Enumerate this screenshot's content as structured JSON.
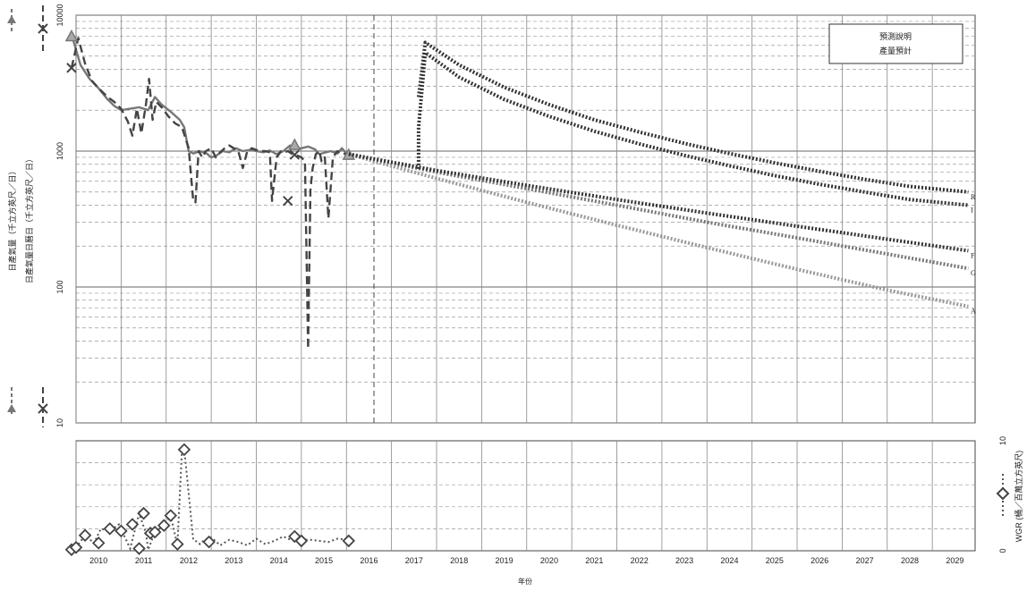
{
  "chart_data": [
    {
      "type": "line",
      "title": "",
      "yscale": "log",
      "ylim": [
        10,
        10000
      ],
      "xlim": [
        2010,
        2029.95
      ],
      "y_tick_values": [
        10,
        100,
        1000,
        10000
      ],
      "y_tick_labels": [
        "10",
        "100",
        "1000",
        "10000"
      ],
      "ylabel_left": "日產氣量（千立方英尺／日）",
      "ylabel_right": "日產氣量日曆日（千立方英尺／日）",
      "forecast_start": 2016.05,
      "legend": {
        "position": "top-right",
        "line1": "預測說明",
        "line2": "產量預計"
      },
      "series": [
        {
          "name": "",
          "style": "solid",
          "color": "#777777",
          "x": [
            2009.9,
            2010.1,
            2010.3,
            2010.5,
            2010.7,
            2010.85,
            2011.0,
            2011.2,
            2011.4,
            2011.6,
            2011.75,
            2011.9,
            2012.1,
            2012.3,
            2012.4,
            2012.5,
            2012.6,
            2012.75,
            2012.9,
            2013.0,
            2013.1,
            2013.25,
            2013.4,
            2013.55,
            2013.7,
            2013.85,
            2014.0,
            2014.15,
            2014.3,
            2014.45,
            2014.6,
            2014.75,
            2014.85,
            2015.0,
            2015.15,
            2015.3,
            2015.4,
            2015.5,
            2015.65,
            2015.8,
            2015.9,
            2016.0,
            2016.05
          ],
          "y": [
            7200,
            4300,
            3400,
            2900,
            2400,
            2150,
            2000,
            2050,
            2100,
            2000,
            2500,
            2200,
            1950,
            1700,
            1500,
            1000,
            960,
            1000,
            960,
            900,
            920,
            1000,
            980,
            1050,
            1000,
            1020,
            1000,
            980,
            1010,
            950,
            1000,
            1100,
            1050,
            1050,
            1080,
            1030,
            950,
            970,
            1000,
            960,
            1050,
            960,
            950
          ]
        },
        {
          "name": "",
          "style": "dashed",
          "color": "#444444",
          "x": [
            2009.9,
            2010.05,
            2010.2,
            2010.35,
            2010.5,
            2010.7,
            2010.85,
            2011.0,
            2011.15,
            2011.25,
            2011.35,
            2011.45,
            2011.55,
            2011.62,
            2011.7,
            2011.78,
            2011.9,
            2012.05,
            2012.2,
            2012.35,
            2012.5,
            2012.6,
            2012.65,
            2012.72,
            2012.8,
            2012.88,
            2013.0,
            2013.1,
            2013.2,
            2013.3,
            2013.4,
            2013.5,
            2013.6,
            2013.7,
            2013.8,
            2013.9,
            2014.0,
            2014.1,
            2014.2,
            2014.3,
            2014.35,
            2014.45,
            2014.55,
            2014.62,
            2014.7,
            2014.8,
            2014.9,
            2015.0,
            2015.08,
            2015.15,
            2015.2,
            2015.25,
            2015.32,
            2015.4,
            2015.45,
            2015.52,
            2015.6,
            2015.7,
            2015.8,
            2015.9,
            2016.0,
            2016.05
          ],
          "y": [
            4100,
            6800,
            4400,
            3300,
            2900,
            2500,
            2300,
            2050,
            1650,
            1300,
            2050,
            1350,
            2200,
            3400,
            1700,
            2300,
            2100,
            1800,
            1600,
            1500,
            1050,
            430,
            420,
            1000,
            900,
            1000,
            1050,
            900,
            980,
            1050,
            1100,
            1050,
            1000,
            750,
            1000,
            1050,
            1020,
            1000,
            1000,
            980,
            430,
            900,
            1000,
            980,
            1000,
            950,
            930,
            900,
            840,
            35,
            520,
            750,
            950,
            1000,
            840,
            900,
            320,
            900,
            1000,
            950,
            960,
            950
          ]
        },
        {
          "name": "",
          "style": "markers",
          "marker": "triangle",
          "color": "#777777",
          "x": [
            2009.9,
            2014.85,
            2016.05
          ],
          "y": [
            7000,
            1110,
            940
          ]
        },
        {
          "name": "",
          "style": "markers",
          "marker": "x",
          "color": "#444444",
          "x": [
            2009.9,
            2014.7,
            2014.85
          ],
          "y": [
            4100,
            430,
            940
          ]
        },
        {
          "name": "A",
          "style": "dotted",
          "color": "#999999",
          "x": [
            2016.05,
            2018,
            2020,
            2022,
            2024,
            2026,
            2028,
            2029.8
          ],
          "y": [
            950,
            630,
            420,
            285,
            195,
            135,
            95,
            72
          ]
        },
        {
          "name": "G",
          "style": "dotted",
          "color": "#777777",
          "x": [
            2016.05,
            2018,
            2020,
            2022,
            2024,
            2026,
            2028,
            2029.8
          ],
          "y": [
            950,
            700,
            530,
            400,
            300,
            230,
            175,
            137
          ]
        },
        {
          "name": "F",
          "style": "dotted",
          "color": "#333333",
          "x": [
            2016.05,
            2018,
            2020,
            2022,
            2024,
            2026,
            2028,
            2029.8
          ],
          "y": [
            950,
            720,
            560,
            440,
            350,
            280,
            225,
            185
          ]
        },
        {
          "name": "I",
          "style": "dotted",
          "color": "#333333",
          "x": [
            2017.6,
            2017.6,
            2017.75,
            2018.5,
            2019.5,
            2020.5,
            2021.5,
            2022.5,
            2023.5,
            2024.5,
            2025.5,
            2026.5,
            2027.5,
            2028.5,
            2029.8
          ],
          "y": [
            740,
            1500,
            5300,
            3500,
            2400,
            1800,
            1400,
            1130,
            930,
            780,
            660,
            570,
            500,
            440,
            400
          ]
        },
        {
          "name": "R",
          "style": "dotted",
          "color": "#333333",
          "x": [
            2017.6,
            2017.75,
            2018.5,
            2019.5,
            2020.5,
            2021.5,
            2022.5,
            2023.5,
            2024.5,
            2025.5,
            2026.5,
            2027.5,
            2028.5,
            2029.8
          ],
          "y": [
            2500,
            6300,
            4300,
            2950,
            2200,
            1700,
            1380,
            1140,
            960,
            820,
            710,
            620,
            550,
            500
          ]
        }
      ]
    },
    {
      "type": "scatter",
      "title": "",
      "ylim": [
        0,
        10
      ],
      "xlim": [
        2010,
        2029.95
      ],
      "y_tick_values": [
        0,
        10
      ],
      "y_tick_labels": [
        "0",
        "10"
      ],
      "ylabel_right": "WGR (桶／百萬立方英尺)",
      "xlabel": "年份",
      "x_tick_labels": [
        "2010",
        "2011",
        "2012",
        "2013",
        "2014",
        "2015",
        "2016",
        "2017",
        "2018",
        "2019",
        "2020",
        "2021",
        "2022",
        "2023",
        "2024",
        "2025",
        "2026",
        "2027",
        "2028",
        "2029"
      ],
      "series": [
        {
          "name": "",
          "style": "dotted+diamond",
          "color": "#555555",
          "x": [
            2009.9,
            2010.0,
            2010.2,
            2010.4,
            2010.55,
            2010.75,
            2010.95,
            2011.2,
            2011.4,
            2011.55,
            2011.6,
            2011.75,
            2011.95,
            2012.1,
            2012.25,
            2012.35,
            2012.4,
            2012.6,
            2012.7,
            2012.75,
            2012.85,
            2013.0,
            2013.2,
            2013.4,
            2013.6,
            2013.8,
            2014.0,
            2014.2,
            2014.4,
            2014.6,
            2014.7,
            2014.85,
            2015.0,
            2015.2,
            2015.4,
            2015.6,
            2015.8,
            2016.0,
            2016.05
          ],
          "y": [
            0.1,
            0.3,
            1.4,
            0.7,
            2.0,
            1.8,
            2.4,
            0.2,
            3.4,
            1.6,
            0.1,
            1.7,
            2.3,
            3.2,
            0.5,
            9.2,
            9.3,
            1.0,
            0.8,
            0.6,
            1.0,
            1.2,
            0.5,
            1.0,
            0.8,
            0.5,
            1.1,
            0.6,
            0.9,
            1.3,
            1.1,
            0.9,
            1.0,
            1.0,
            0.9,
            0.8,
            1.1,
            1.0,
            0.9
          ]
        }
      ],
      "markers": {
        "x": [
          2009.9,
          2010.0,
          2010.2,
          2010.5,
          2010.75,
          2011.0,
          2011.25,
          2011.4,
          2011.5,
          2011.65,
          2011.75,
          2011.95,
          2012.1,
          2012.25,
          2012.4,
          2012.95,
          2014.85,
          2015.0,
          2016.05
        ],
        "y": [
          0.1,
          0.3,
          1.4,
          0.7,
          2.0,
          1.8,
          2.4,
          0.2,
          3.4,
          1.6,
          1.7,
          2.3,
          3.2,
          0.6,
          9.2,
          0.8,
          1.3,
          0.9,
          0.9
        ]
      }
    }
  ]
}
